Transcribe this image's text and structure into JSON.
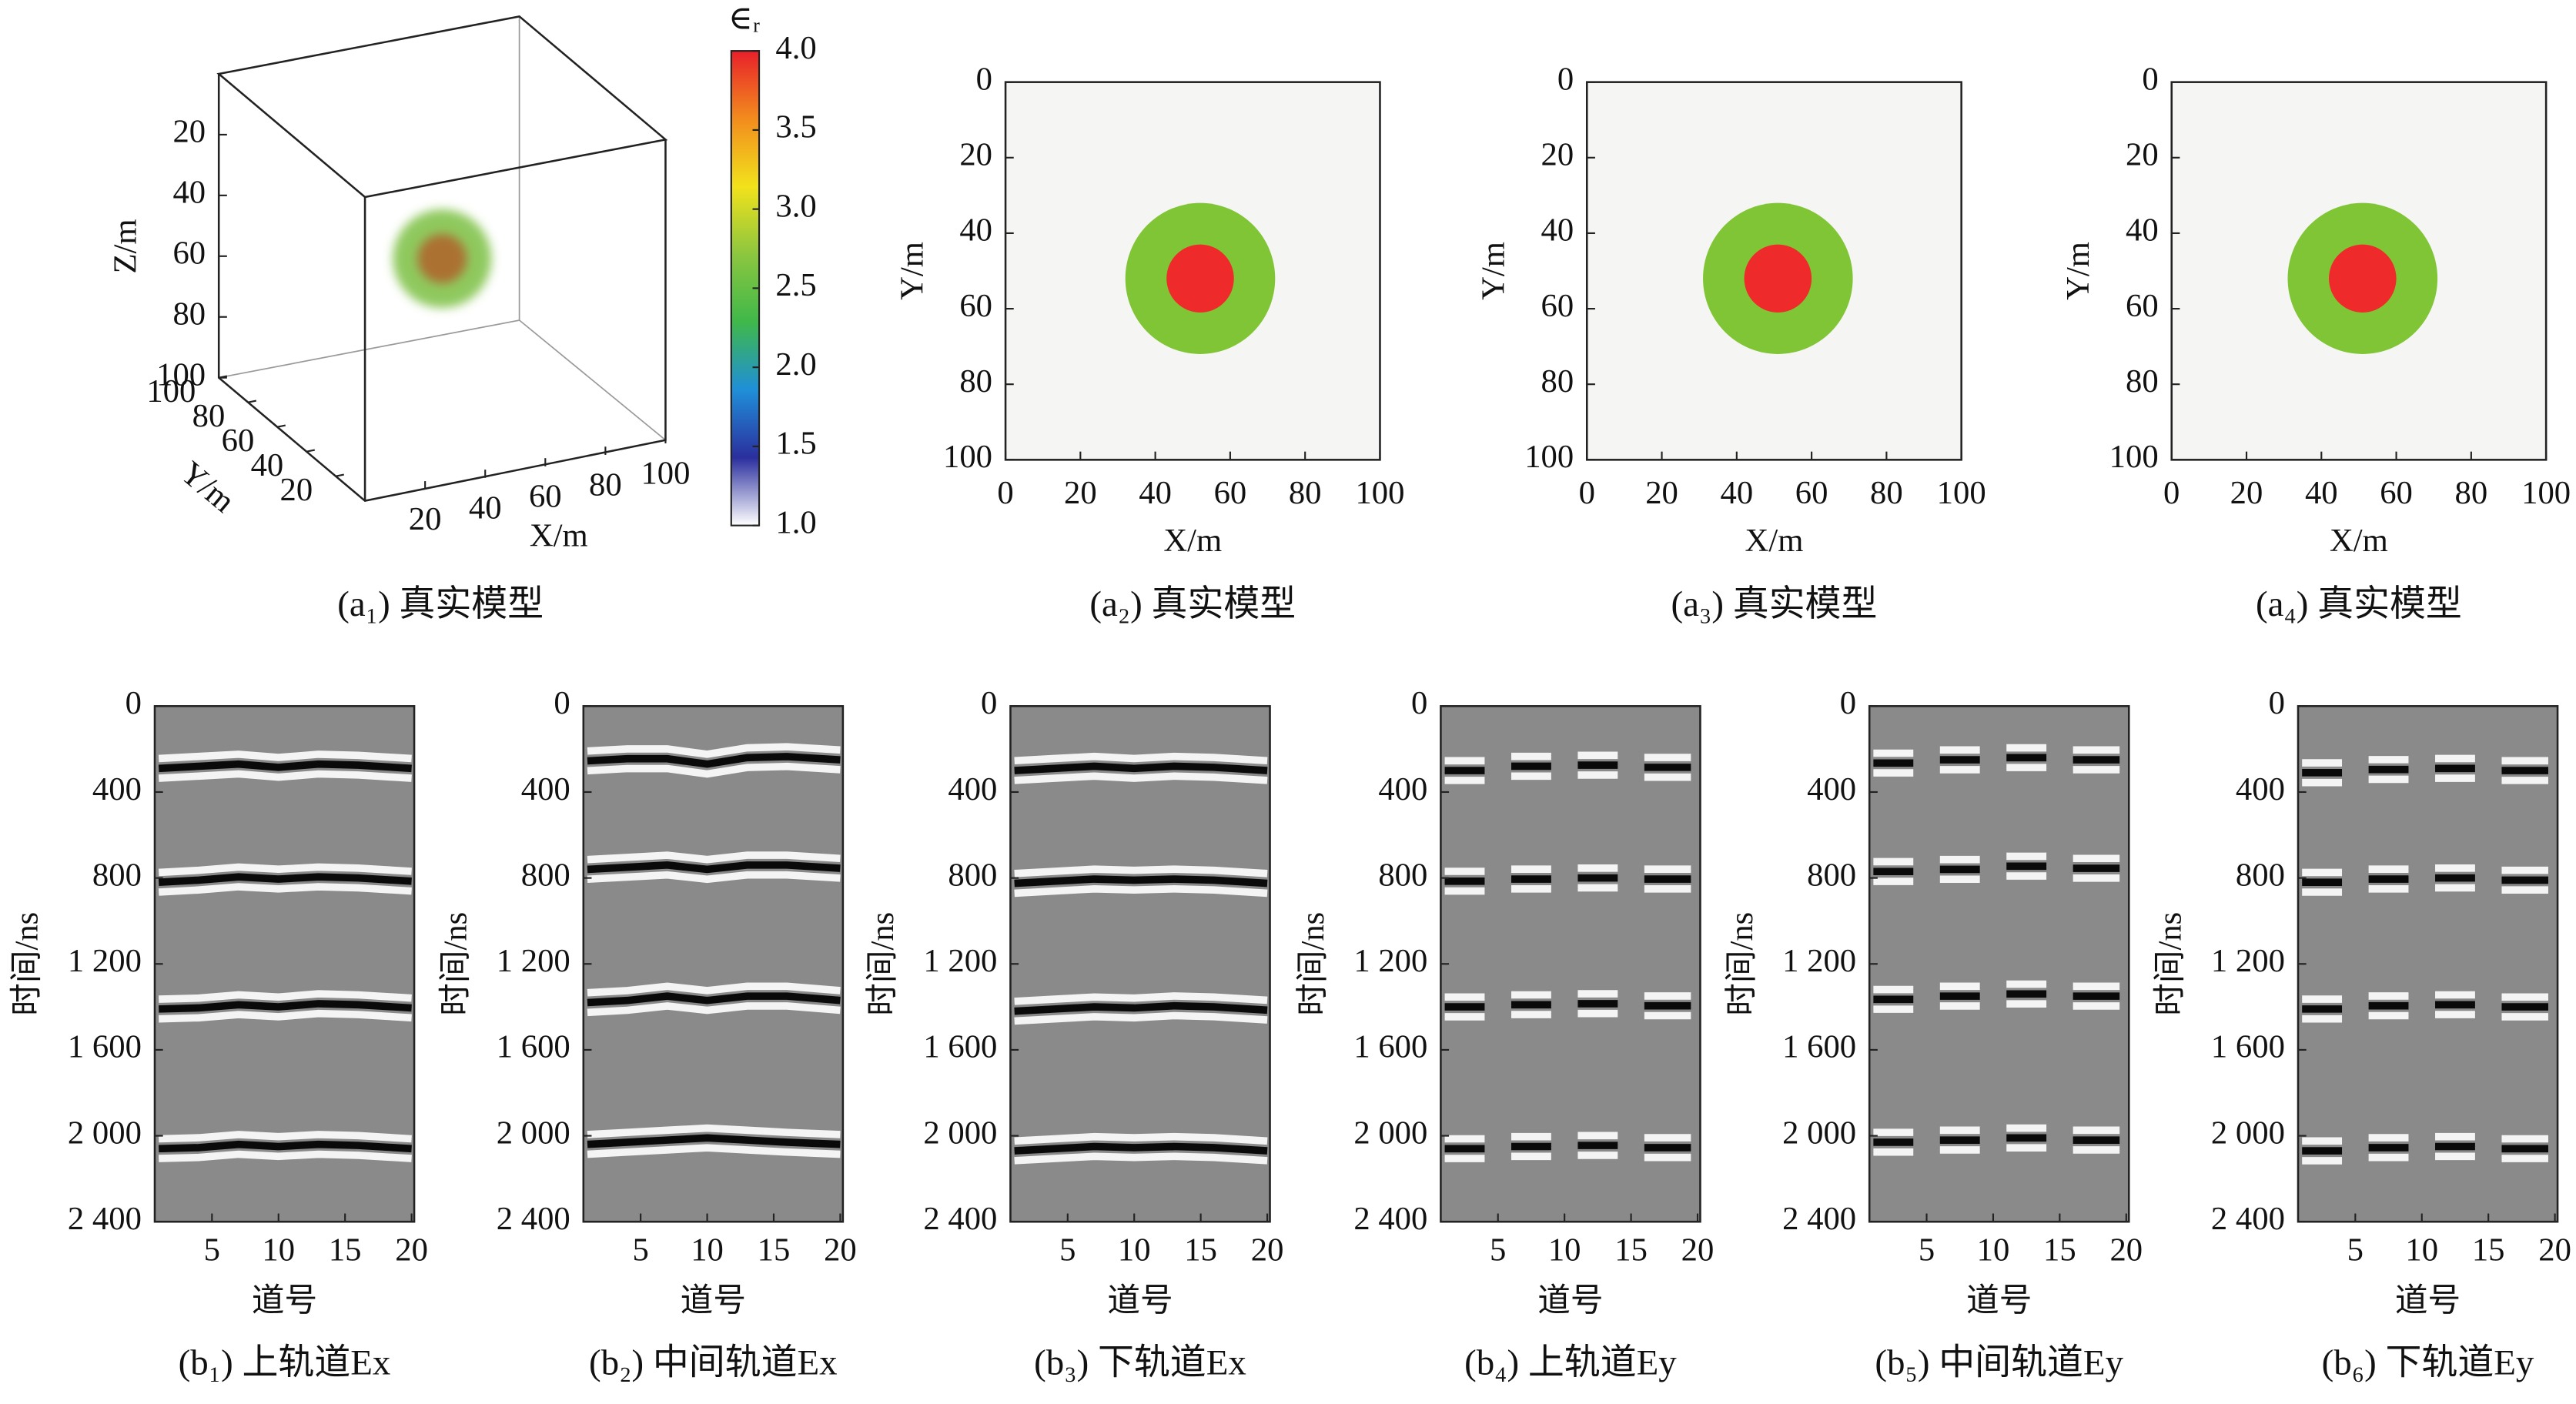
{
  "chart_data": [
    {
      "type": "volume",
      "caption": "(a₁) 真实模型",
      "xlabel": "X/m",
      "ylabel": "Y/m",
      "zlabel": "Z/m",
      "xlim": [
        0,
        100
      ],
      "ylim": [
        0,
        100
      ],
      "zlim": [
        0,
        100
      ],
      "xticks": [
        20,
        40,
        60,
        80,
        100
      ],
      "yticks": [
        20,
        40,
        60,
        80,
        100
      ],
      "zticks": [
        20,
        40,
        60,
        80,
        100
      ],
      "sphere": {
        "center": [
          50,
          50,
          50
        ],
        "radius": 20,
        "color": "#7cc043"
      },
      "core": {
        "center": [
          50,
          50,
          50
        ],
        "radius": 10,
        "color": "#b0622a"
      },
      "colorbar": {
        "label": "∈ᵣ",
        "lim": [
          1,
          4
        ],
        "ticks": [
          {
            "value": 1,
            "label": "1.0"
          },
          {
            "value": 1.5,
            "label": "1.5"
          },
          {
            "value": 2,
            "label": "2.0"
          },
          {
            "value": 2.5,
            "label": "2.5"
          },
          {
            "value": 3,
            "label": "3.0"
          },
          {
            "value": 3.5,
            "label": "3.5"
          },
          {
            "value": 4,
            "label": "4.0"
          }
        ],
        "colors": [
          "#ffffff",
          "#2b2f9e",
          "#1f8fd8",
          "#3fb84a",
          "#8cc63f",
          "#f2e21b",
          "#f28c1e",
          "#e8202a"
        ]
      }
    },
    {
      "type": "heatmap",
      "caption": "(a₂) 真实模型",
      "xlabel": "X/m",
      "ylabel": "Y/m",
      "xlim": [
        0,
        100
      ],
      "ylim": [
        100,
        0
      ],
      "xticks": [
        0,
        20,
        40,
        60,
        80,
        100
      ],
      "yticks": [
        0,
        20,
        40,
        60,
        80,
        100
      ],
      "background": "#f5f5f3",
      "regions": [
        {
          "center": [
            52,
            52
          ],
          "radius": 20,
          "color": "#80c535"
        },
        {
          "center": [
            52,
            52
          ],
          "radius": 9,
          "color": "#ee2a2a"
        }
      ]
    },
    {
      "type": "heatmap",
      "caption": "(a₃) 真实模型",
      "xlabel": "X/m",
      "ylabel": "Y/m",
      "xlim": [
        0,
        100
      ],
      "ylim": [
        100,
        0
      ],
      "xticks": [
        0,
        20,
        40,
        60,
        80,
        100
      ],
      "yticks": [
        0,
        20,
        40,
        60,
        80,
        100
      ],
      "background": "#f5f5f3",
      "regions": [
        {
          "center": [
            51,
            52
          ],
          "radius": 20,
          "color": "#80c535"
        },
        {
          "center": [
            51,
            52
          ],
          "radius": 9,
          "color": "#ee2a2a"
        }
      ]
    },
    {
      "type": "heatmap",
      "caption": "(a₄) 真实模型",
      "xlabel": "X/m",
      "ylabel": "Y/m",
      "xlim": [
        0,
        100
      ],
      "ylim": [
        100,
        0
      ],
      "xticks": [
        0,
        20,
        40,
        60,
        80,
        100
      ],
      "yticks": [
        0,
        20,
        40,
        60,
        80,
        100
      ],
      "background": "#f5f5f3",
      "regions": [
        {
          "center": [
            51,
            52
          ],
          "radius": 20,
          "color": "#80c535"
        },
        {
          "center": [
            51,
            52
          ],
          "radius": 9,
          "color": "#ee2a2a"
        }
      ]
    },
    {
      "type": "radargram",
      "caption": "(b₁) 上轨道Ex",
      "xlabel": "道号",
      "ylabel": "时间/ns",
      "xlim": [
        0.7,
        20.2
      ],
      "ylim": [
        2400,
        0
      ],
      "xticks": [
        5,
        10,
        15,
        20
      ],
      "yticks": [
        0,
        400,
        800,
        {
          "value": 1200,
          "label": "1 200"
        },
        {
          "value": 1600,
          "label": "1 600"
        },
        {
          "value": 2000,
          "label": "2 000"
        },
        {
          "value": 2400,
          "label": "2 400"
        }
      ],
      "x": [
        1,
        4,
        7,
        10,
        13,
        16,
        20
      ],
      "series": [
        {
          "values": [
            290,
            280,
            270,
            285,
            270,
            275,
            290
          ]
        },
        {
          "values": [
            820,
            810,
            795,
            805,
            795,
            800,
            815
          ]
        },
        {
          "values": [
            1410,
            1405,
            1390,
            1400,
            1385,
            1390,
            1405
          ]
        },
        {
          "values": [
            2060,
            2055,
            2040,
            2050,
            2040,
            2045,
            2060
          ]
        }
      ]
    },
    {
      "type": "radargram",
      "caption": "(b₂) 中间轨道Ex",
      "xlabel": "道号",
      "ylabel": "时间/ns",
      "xlim": [
        0.7,
        20.2
      ],
      "ylim": [
        2400,
        0
      ],
      "xticks": [
        5,
        10,
        15,
        20
      ],
      "yticks": [
        0,
        400,
        800,
        {
          "value": 1200,
          "label": "1 200"
        },
        {
          "value": 1600,
          "label": "1 600"
        },
        {
          "value": 2000,
          "label": "2 000"
        },
        {
          "value": 2400,
          "label": "2 400"
        }
      ],
      "x": [
        1,
        4,
        7,
        10,
        13,
        16,
        20
      ],
      "series": [
        {
          "values": [
            255,
            245,
            245,
            270,
            240,
            235,
            250
          ]
        },
        {
          "values": [
            760,
            750,
            740,
            760,
            740,
            740,
            755
          ]
        },
        {
          "values": [
            1380,
            1370,
            1350,
            1370,
            1350,
            1350,
            1370
          ]
        },
        {
          "values": [
            2040,
            2030,
            2020,
            2010,
            2020,
            2030,
            2040
          ]
        }
      ]
    },
    {
      "type": "radargram",
      "caption": "(b₃) 下轨道Ex",
      "xlabel": "道号",
      "ylabel": "时间/ns",
      "xlim": [
        0.7,
        20.2
      ],
      "ylim": [
        2400,
        0
      ],
      "xticks": [
        5,
        10,
        15,
        20
      ],
      "yticks": [
        0,
        400,
        800,
        {
          "value": 1200,
          "label": "1 200"
        },
        {
          "value": 1600,
          "label": "1 600"
        },
        {
          "value": 2000,
          "label": "2 000"
        },
        {
          "value": 2400,
          "label": "2 400"
        }
      ],
      "x": [
        1,
        4,
        7,
        10,
        13,
        16,
        20
      ],
      "series": [
        {
          "values": [
            300,
            290,
            280,
            290,
            280,
            285,
            300
          ]
        },
        {
          "values": [
            825,
            815,
            805,
            810,
            805,
            810,
            825
          ]
        },
        {
          "values": [
            1420,
            1410,
            1400,
            1405,
            1395,
            1400,
            1415
          ]
        },
        {
          "values": [
            2070,
            2060,
            2050,
            2055,
            2050,
            2055,
            2070
          ]
        }
      ]
    },
    {
      "type": "radargram",
      "caption": "(b₄) 上轨道Ey",
      "xlabel": "道号",
      "ylabel": "时间/ns",
      "xlim": [
        0.7,
        20.2
      ],
      "ylim": [
        2400,
        0
      ],
      "xticks": [
        5,
        10,
        15,
        20
      ],
      "yticks": [
        0,
        400,
        800,
        {
          "value": 1200,
          "label": "1 200"
        },
        {
          "value": 1600,
          "label": "1 600"
        },
        {
          "value": 2000,
          "label": "2 000"
        },
        {
          "value": 2400,
          "label": "2 400"
        }
      ],
      "x": [
        1,
        4,
        5,
        6,
        9,
        10,
        11,
        14,
        15,
        16,
        19.5
      ],
      "series": [
        {
          "values": [
            300,
            300,
            null,
            280,
            280,
            null,
            275,
            275,
            null,
            285,
            285
          ]
        },
        {
          "values": [
            815,
            815,
            null,
            805,
            805,
            null,
            800,
            800,
            null,
            805,
            805
          ]
        },
        {
          "values": [
            1400,
            1400,
            null,
            1390,
            1390,
            null,
            1385,
            1385,
            null,
            1395,
            1395
          ]
        },
        {
          "values": [
            2060,
            2060,
            null,
            2050,
            2050,
            null,
            2045,
            2045,
            null,
            2055,
            2055
          ]
        }
      ]
    },
    {
      "type": "radargram",
      "caption": "(b₅) 中间轨道Ey",
      "xlabel": "道号",
      "ylabel": "时间/ns",
      "xlim": [
        0.7,
        20.2
      ],
      "ylim": [
        2400,
        0
      ],
      "xticks": [
        5,
        10,
        15,
        20
      ],
      "yticks": [
        0,
        400,
        800,
        {
          "value": 1200,
          "label": "1 200"
        },
        {
          "value": 1600,
          "label": "1 600"
        },
        {
          "value": 2000,
          "label": "2 000"
        },
        {
          "value": 2400,
          "label": "2 400"
        }
      ],
      "x": [
        1,
        4,
        5,
        6,
        9,
        10,
        11,
        14,
        15,
        16,
        19.5
      ],
      "series": [
        {
          "values": [
            265,
            265,
            null,
            250,
            250,
            null,
            240,
            240,
            null,
            250,
            250
          ]
        },
        {
          "values": [
            770,
            770,
            null,
            760,
            760,
            null,
            745,
            745,
            null,
            755,
            755
          ]
        },
        {
          "values": [
            1365,
            1365,
            null,
            1350,
            1350,
            null,
            1340,
            1340,
            null,
            1350,
            1350
          ]
        },
        {
          "values": [
            2030,
            2030,
            null,
            2020,
            2020,
            null,
            2010,
            2010,
            null,
            2020,
            2020
          ]
        }
      ]
    },
    {
      "type": "radargram",
      "caption": "(b₆) 下轨道Ey",
      "xlabel": "道号",
      "ylabel": "时间/ns",
      "xlim": [
        0.7,
        20.2
      ],
      "ylim": [
        2400,
        0
      ],
      "xticks": [
        5,
        10,
        15,
        20
      ],
      "yticks": [
        0,
        400,
        800,
        {
          "value": 1200,
          "label": "1 200"
        },
        {
          "value": 1600,
          "label": "1 600"
        },
        {
          "value": 2000,
          "label": "2 000"
        },
        {
          "value": 2400,
          "label": "2 400"
        }
      ],
      "x": [
        1,
        4,
        5,
        6,
        9,
        10,
        11,
        14,
        15,
        16,
        19.5
      ],
      "series": [
        {
          "values": [
            310,
            310,
            null,
            295,
            295,
            null,
            290,
            290,
            null,
            300,
            300
          ]
        },
        {
          "values": [
            820,
            820,
            null,
            805,
            805,
            null,
            800,
            800,
            null,
            810,
            810
          ]
        },
        {
          "values": [
            1410,
            1410,
            null,
            1395,
            1395,
            null,
            1390,
            1390,
            null,
            1400,
            1400
          ]
        },
        {
          "values": [
            2070,
            2070,
            null,
            2055,
            2055,
            null,
            2050,
            2050,
            null,
            2060,
            2060
          ]
        }
      ]
    }
  ]
}
